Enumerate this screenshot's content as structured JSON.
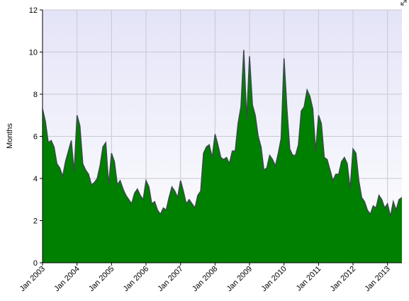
{
  "chart_data": {
    "type": "area",
    "y_label": "Months",
    "x": [
      "2003-01",
      "2003-02",
      "2003-03",
      "2003-04",
      "2003-05",
      "2003-06",
      "2003-07",
      "2003-08",
      "2003-09",
      "2003-10",
      "2003-11",
      "2003-12",
      "2004-01",
      "2004-02",
      "2004-03",
      "2004-04",
      "2004-05",
      "2004-06",
      "2004-07",
      "2004-08",
      "2004-09",
      "2004-10",
      "2004-11",
      "2004-12",
      "2005-01",
      "2005-02",
      "2005-03",
      "2005-04",
      "2005-05",
      "2005-06",
      "2005-07",
      "2005-08",
      "2005-09",
      "2005-10",
      "2005-11",
      "2005-12",
      "2006-01",
      "2006-02",
      "2006-03",
      "2006-04",
      "2006-05",
      "2006-06",
      "2006-07",
      "2006-08",
      "2006-09",
      "2006-10",
      "2006-11",
      "2006-12",
      "2007-01",
      "2007-02",
      "2007-03",
      "2007-04",
      "2007-05",
      "2007-06",
      "2007-07",
      "2007-08",
      "2007-09",
      "2007-10",
      "2007-11",
      "2007-12",
      "2008-01",
      "2008-02",
      "2008-03",
      "2008-04",
      "2008-05",
      "2008-06",
      "2008-07",
      "2008-08",
      "2008-09",
      "2008-10",
      "2008-11",
      "2008-12",
      "2009-01",
      "2009-02",
      "2009-03",
      "2009-04",
      "2009-05",
      "2009-06",
      "2009-07",
      "2009-08",
      "2009-09",
      "2009-10",
      "2009-11",
      "2009-12",
      "2010-01",
      "2010-02",
      "2010-03",
      "2010-04",
      "2010-05",
      "2010-06",
      "2010-07",
      "2010-08",
      "2010-09",
      "2010-10",
      "2010-11",
      "2010-12",
      "2011-01",
      "2011-02",
      "2011-03",
      "2011-04",
      "2011-05",
      "2011-06",
      "2011-07",
      "2011-08",
      "2011-09",
      "2011-10",
      "2011-11",
      "2011-12",
      "2012-01",
      "2012-02",
      "2012-03",
      "2012-04",
      "2012-05",
      "2012-06",
      "2012-07",
      "2012-08",
      "2012-09",
      "2012-10",
      "2012-11",
      "2012-12",
      "2013-01",
      "2013-02",
      "2013-03",
      "2013-04",
      "2013-05",
      "2013-06"
    ],
    "values": [
      7.3,
      6.7,
      5.7,
      5.8,
      5.5,
      4.7,
      4.5,
      4.1,
      4.8,
      5.3,
      5.8,
      4.3,
      7.0,
      6.5,
      4.7,
      4.4,
      4.2,
      3.7,
      3.8,
      4.0,
      4.6,
      5.5,
      5.7,
      3.7,
      5.2,
      4.8,
      3.7,
      3.9,
      3.5,
      3.2,
      3.0,
      2.8,
      3.3,
      3.5,
      3.2,
      3.0,
      3.9,
      3.6,
      2.8,
      2.9,
      2.5,
      2.3,
      2.6,
      2.5,
      3.1,
      3.6,
      3.4,
      3.1,
      3.9,
      3.4,
      2.8,
      3.0,
      2.8,
      2.6,
      3.2,
      3.4,
      5.2,
      5.5,
      5.6,
      5.0,
      6.1,
      5.6,
      5.0,
      4.9,
      5.0,
      4.7,
      5.3,
      5.3,
      6.6,
      7.4,
      10.1,
      6.8,
      9.8,
      7.5,
      7.0,
      6.0,
      5.5,
      4.4,
      4.5,
      5.1,
      4.9,
      4.6,
      5.2,
      5.9,
      9.7,
      7.3,
      5.4,
      5.1,
      5.1,
      5.6,
      7.2,
      7.4,
      8.2,
      7.9,
      7.3,
      5.3,
      7.0,
      6.6,
      5.0,
      4.9,
      4.4,
      3.9,
      4.2,
      4.2,
      4.8,
      5.0,
      4.7,
      3.5,
      5.4,
      5.2,
      3.9,
      3.1,
      2.9,
      2.5,
      2.3,
      2.7,
      2.6,
      3.2,
      3.0,
      2.6,
      2.8,
      2.2,
      2.9,
      2.5,
      3.0,
      3.1
    ],
    "color": "#008000",
    "xlim": [
      "2003-01",
      "2013-06"
    ],
    "xticks": [
      {
        "value": "2003-01",
        "label": "Jan 2003"
      },
      {
        "value": "2004-01",
        "label": "Jan 2004"
      },
      {
        "value": "2005-01",
        "label": "Jan 2005"
      },
      {
        "value": "2006-01",
        "label": "Jan 2006"
      },
      {
        "value": "2007-01",
        "label": "Jan 2007"
      },
      {
        "value": "2008-01",
        "label": "Jan 2008"
      },
      {
        "value": "2009-01",
        "label": "Jan 2009"
      },
      {
        "value": "2010-01",
        "label": "Jan 2010"
      },
      {
        "value": "2011-01",
        "label": "Jan 2011"
      },
      {
        "value": "2012-01",
        "label": "Jan 2012"
      },
      {
        "value": "2013-01",
        "label": "Jan 2013"
      }
    ],
    "ylim": [
      0,
      12
    ],
    "yticks": [
      0,
      2,
      4,
      6,
      8,
      10,
      12
    ],
    "grid": true
  }
}
